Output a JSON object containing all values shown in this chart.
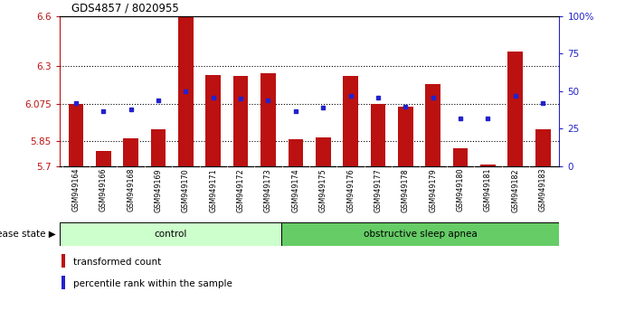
{
  "title": "GDS4857 / 8020955",
  "samples": [
    "GSM949164",
    "GSM949166",
    "GSM949168",
    "GSM949169",
    "GSM949170",
    "GSM949171",
    "GSM949172",
    "GSM949173",
    "GSM949174",
    "GSM949175",
    "GSM949176",
    "GSM949177",
    "GSM949178",
    "GSM949179",
    "GSM949180",
    "GSM949181",
    "GSM949182",
    "GSM949183"
  ],
  "red_values": [
    6.075,
    5.79,
    5.87,
    5.92,
    6.6,
    6.245,
    6.24,
    6.255,
    5.865,
    5.875,
    6.24,
    6.075,
    6.055,
    6.195,
    5.81,
    5.71,
    6.39,
    5.92
  ],
  "blue_percentiles": [
    42,
    37,
    38,
    44,
    50,
    46,
    45,
    44,
    37,
    39,
    47,
    46,
    40,
    46,
    32,
    32,
    47,
    42
  ],
  "ymin": 5.7,
  "ymax": 6.6,
  "yticks_left": [
    5.7,
    5.85,
    6.075,
    6.3,
    6.6
  ],
  "yticks_right_vals": [
    0,
    25,
    50,
    75,
    100
  ],
  "yticks_right_labels": [
    "0",
    "25",
    "50",
    "75",
    "100%"
  ],
  "hlines": [
    5.85,
    6.075,
    6.3
  ],
  "control_count": 8,
  "control_color": "#ccffcc",
  "apnea_color": "#66cc66",
  "control_label": "control",
  "apnea_label": "obstructive sleep apnea",
  "bar_color": "#bb1111",
  "dot_color": "#2222cc",
  "base": 5.7,
  "disease_label": "disease state"
}
